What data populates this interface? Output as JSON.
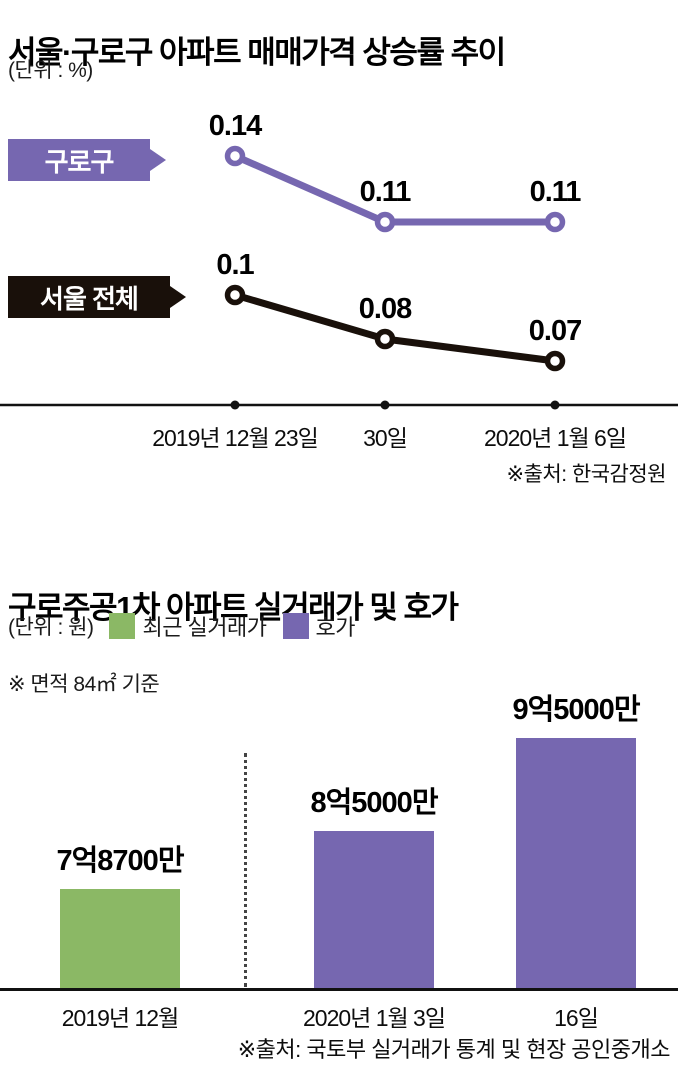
{
  "chart_data": [
    {
      "type": "line",
      "title": "서울·구로구 아파트 매매가격 상승률 추이",
      "unit_label": "(단위 : %)",
      "x_categories": [
        "2019년 12월 23일",
        "30일",
        "2020년 1월 6일"
      ],
      "series": [
        {
          "name": "구로구",
          "color": "#7667b0",
          "values": [
            0.14,
            0.11,
            0.11
          ]
        },
        {
          "name": "서울 전체",
          "color": "#19100a",
          "values": [
            0.1,
            0.08,
            0.07
          ]
        }
      ],
      "grid": false,
      "legend_position": "inline-left-callout-boxes",
      "source": "※출처: 한국감정원"
    },
    {
      "type": "bar",
      "title": "구로주공1차 아파트 실거래가 및 호가",
      "unit_label": "(단위 : 원)",
      "legend": [
        {
          "label": "최근 실거래가",
          "color": "#8bb865"
        },
        {
          "label": "호가",
          "color": "#7667b0"
        }
      ],
      "note": "※ 면적 84㎡ 기준",
      "categories": [
        "2019년 12월",
        "2020년 1월 3일",
        "16일"
      ],
      "values": [
        78700,
        85000,
        95000
      ],
      "value_unit": "만원",
      "bar_labels": [
        "7억8700만",
        "8억5000만",
        "9억5000만"
      ],
      "bar_colors": [
        "#8bb865",
        "#7667b0",
        "#7667b0"
      ],
      "ylim_hint": [
        68000,
        95000
      ],
      "grid": false,
      "source": "※출처: 국토부 실거래가 통계 및 현장 공인중개소"
    }
  ]
}
